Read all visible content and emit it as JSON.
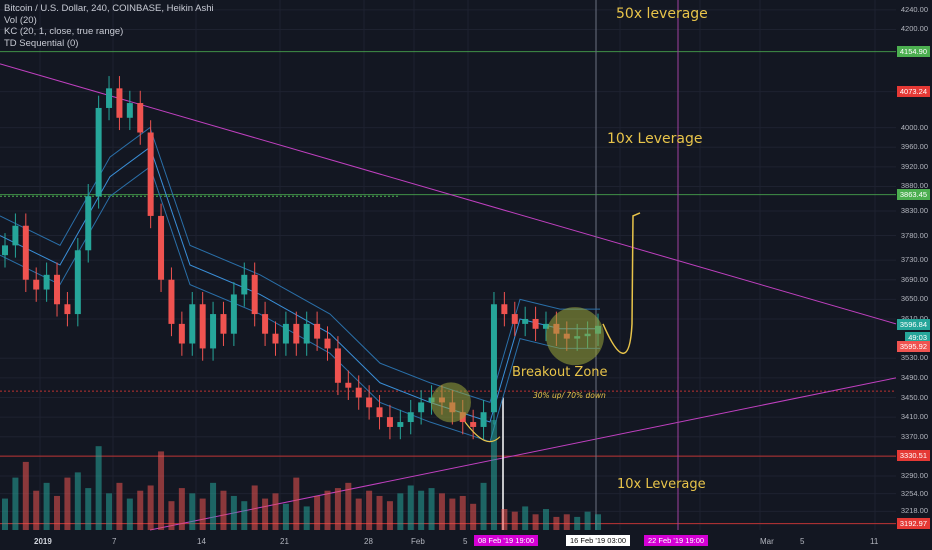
{
  "chart_data": {
    "type": "candlestick",
    "title": "Bitcoin / U.S. Dollar, 240, COINBASE, Heikin Ashi",
    "indicators": [
      "Vol (20)",
      "KC (20, 1, close, true range)",
      "TD Sequential (0)"
    ],
    "y_axis": {
      "ticks": [
        "4240.00",
        "4200.00",
        "4073.24",
        "4000.00",
        "3960.00",
        "3920.00",
        "3880.00",
        "3830.00",
        "3780.00",
        "3730.00",
        "3690.00",
        "3650.00",
        "3610.00",
        "3530.00",
        "3490.00",
        "3450.00",
        "3410.00",
        "3370.00",
        "3330.51",
        "3290.00",
        "3254.00",
        "3218.00",
        "3192.97"
      ],
      "range": [
        3180,
        4260
      ]
    },
    "x_axis": {
      "ticks": [
        "2019",
        "7",
        "14",
        "21",
        "28",
        "Feb",
        "5",
        "Mar",
        "5",
        "11"
      ]
    },
    "price_tags": [
      {
        "label": "4154.90",
        "value": 4154.9,
        "color": "#4caf50"
      },
      {
        "label": "4073.24",
        "value": 4073.24,
        "color": "#e53935"
      },
      {
        "label": "3863.45",
        "value": 3863.45,
        "color": "#4caf50"
      },
      {
        "label": "3596.84",
        "value": 3596.84,
        "color": "#26a69a"
      },
      {
        "label": "49:03",
        "value": 3572,
        "color": "#26a69a"
      },
      {
        "label": "3595.92",
        "value": 3552,
        "color": "#ef5350"
      },
      {
        "label": "3330.51",
        "value": 3330.51,
        "color": "#e53935"
      },
      {
        "label": "3192.97",
        "value": 3192.97,
        "color": "#e53935"
      }
    ],
    "date_tags": [
      {
        "label": "08 Feb '19   19:00",
        "style": "magenta"
      },
      {
        "label": "16 Feb '19   03:00",
        "style": "white"
      },
      {
        "label": "22 Feb '19   19:00",
        "style": "magenta"
      }
    ],
    "annotations": [
      {
        "text": "50x leverage"
      },
      {
        "text": "10x Leverage"
      },
      {
        "text": "Breakout Zone"
      },
      {
        "text": "30% up/ 70% down"
      },
      {
        "text": "10x Leverage"
      }
    ],
    "horizontal_levels": [
      4154.9,
      3863.45,
      3463,
      3330.51,
      3192.97
    ],
    "series": [
      {
        "name": "Heikin Ashi",
        "close_path": [
          3760,
          3800,
          3690,
          3670,
          3700,
          3640,
          3620,
          3750,
          3860,
          4040,
          4080,
          4020,
          4050,
          3990,
          3820,
          3690,
          3600,
          3560,
          3640,
          3550,
          3620,
          3580,
          3660,
          3700,
          3620,
          3580,
          3560,
          3600,
          3560,
          3600,
          3570,
          3550,
          3480,
          3470,
          3450,
          3430,
          3410,
          3390,
          3400,
          3420,
          3440,
          3450,
          3440,
          3420,
          3400,
          3390,
          3420,
          3640,
          3620,
          3600,
          3610,
          3590,
          3600,
          3580,
          3570,
          3575,
          3580,
          3596
        ]
      },
      {
        "name": "Vol",
        "values": [
          120,
          200,
          260,
          150,
          180,
          130,
          200,
          220,
          160,
          320,
          140,
          180,
          120,
          150,
          170,
          300,
          110,
          160,
          140,
          120,
          180,
          150,
          130,
          110,
          170,
          120,
          140,
          100,
          200,
          90,
          130,
          150,
          160,
          180,
          120,
          150,
          130,
          110,
          140,
          170,
          150,
          160,
          140,
          120,
          130,
          100,
          180,
          420,
          80,
          70,
          90,
          60,
          80,
          50,
          60,
          50,
          70,
          60
        ]
      }
    ]
  }
}
